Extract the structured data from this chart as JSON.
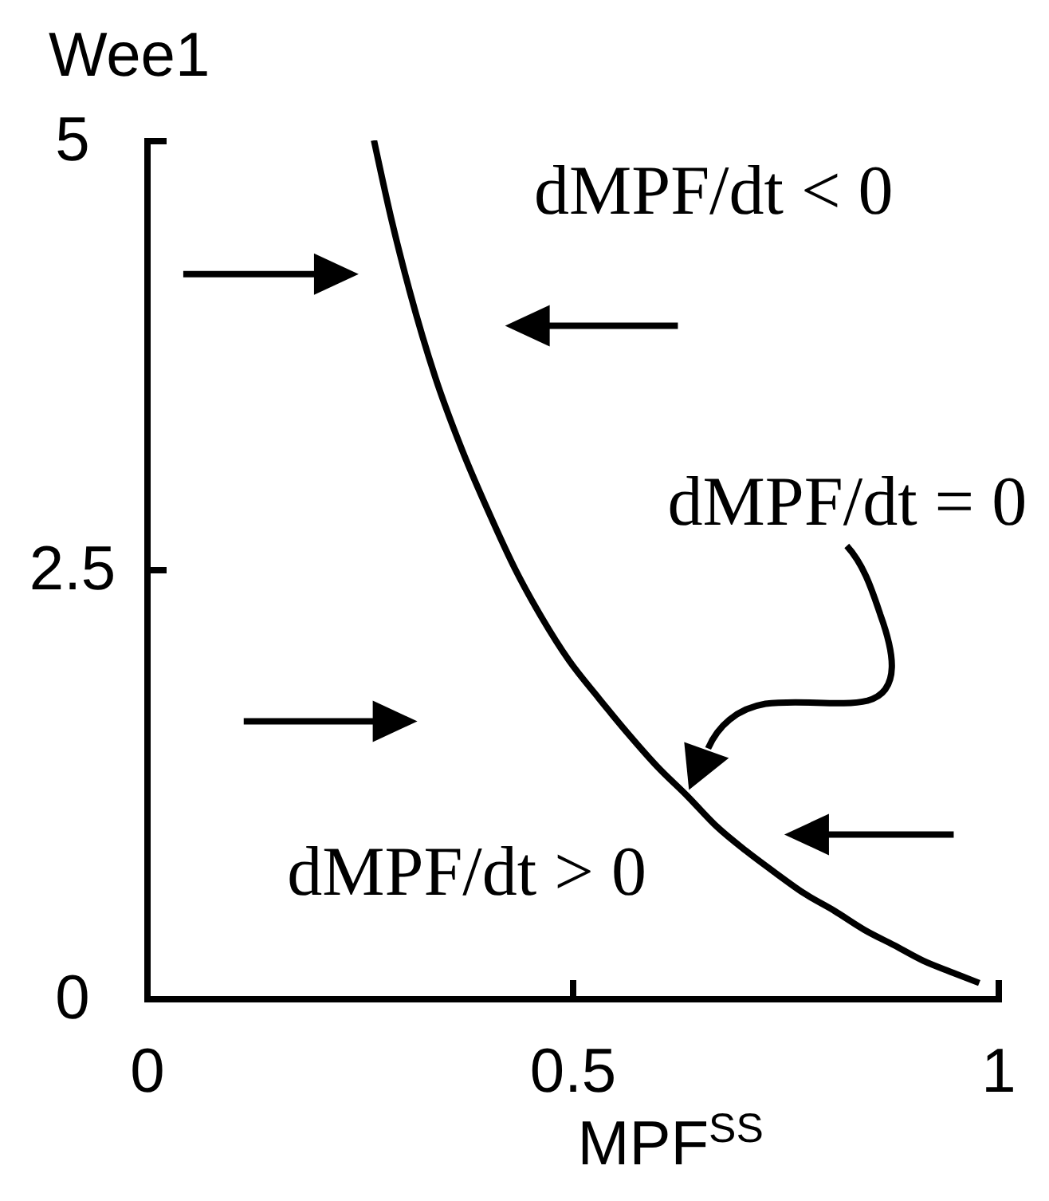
{
  "chart_data": {
    "type": "line",
    "xlabel": "MPF$^{SS}$",
    "ylabel": "Wee1",
    "annotations": [
      "dMPF/dt < 0",
      "dMPF/dt = 0",
      "dMPF/dt > 0"
    ],
    "x": [
      0.267,
      0.287,
      0.309,
      0.339,
      0.371,
      0.403,
      0.433,
      0.464,
      0.496,
      0.531,
      0.566,
      0.6,
      0.635,
      0.67,
      0.704,
      0.739,
      0.773,
      0.808,
      0.843,
      0.878,
      0.912,
      0.947,
      0.978
    ],
    "series": [
      {
        "color": "#000000",
        "values": [
          5.0,
          4.55,
          4.12,
          3.62,
          3.19,
          2.82,
          2.5,
          2.22,
          1.97,
          1.75,
          1.54,
          1.35,
          1.18,
          1.0,
          0.86,
          0.73,
          0.61,
          0.51,
          0.4,
          0.31,
          0.22,
          0.15,
          0.09
        ]
      }
    ],
    "xlim": [
      0,
      1
    ],
    "xticks": [
      0,
      0.5,
      1
    ],
    "ylim": [
      0,
      5
    ],
    "yticks": [
      0,
      2.5,
      5
    ]
  }
}
